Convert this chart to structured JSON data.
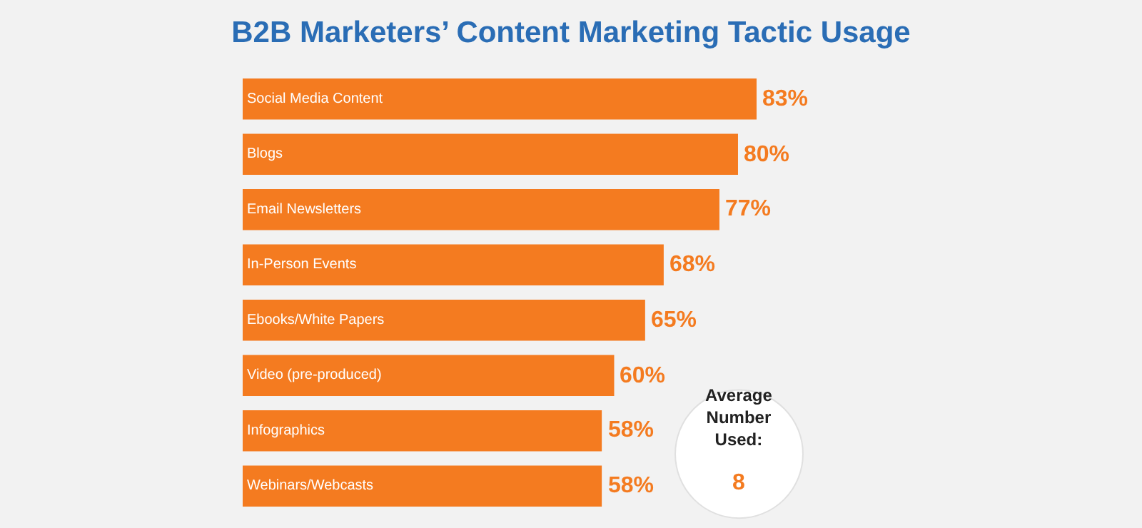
{
  "chart_data": {
    "type": "bar",
    "orientation": "horizontal",
    "title": "B2B Marketers’ Content Marketing Tactic Usage",
    "categories": [
      "Social Media Content",
      "Blogs",
      "Email Newsletters",
      "In-Person Events",
      "Ebooks/White Papers",
      "Video (pre-produced)",
      "Infographics",
      "Webinars/Webcasts"
    ],
    "values": [
      83,
      80,
      77,
      68,
      65,
      60,
      58,
      58
    ],
    "value_labels": [
      "83%",
      "80%",
      "77%",
      "68%",
      "65%",
      "60%",
      "58%",
      "58%"
    ],
    "color": "#f47b20",
    "annotations": [
      "Average Number Used:",
      "8"
    ]
  }
}
